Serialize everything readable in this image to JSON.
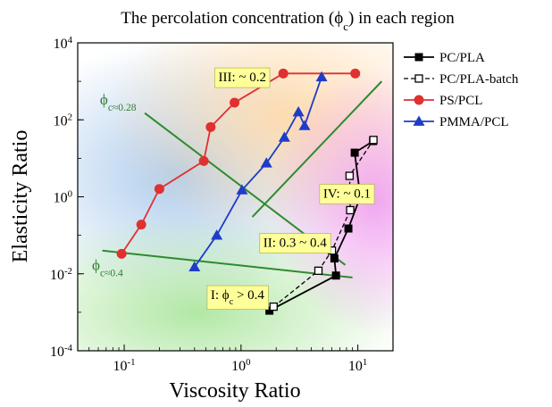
{
  "chart_data": {
    "type": "scatter",
    "title": "The percolation concentration (ϕ_c) in each region",
    "xlabel": "Viscosity Ratio",
    "ylabel": "Elasticity Ratio",
    "xscale": "log",
    "yscale": "log",
    "xlim": [
      0.04,
      20
    ],
    "ylim": [
      0.0001,
      10000
    ],
    "x_ticks": [
      {
        "value": 0.1,
        "label": "10^-1"
      },
      {
        "value": 1,
        "label": "10^0"
      },
      {
        "value": 10,
        "label": "10^1"
      }
    ],
    "y_ticks": [
      {
        "value": 0.0001,
        "label": "10^-4"
      },
      {
        "value": 0.01,
        "label": "10^-2"
      },
      {
        "value": 1,
        "label": "10^0"
      },
      {
        "value": 100,
        "label": "10^2"
      },
      {
        "value": 10000,
        "label": "10^4"
      }
    ],
    "legend_position": "right",
    "series": [
      {
        "name": "PC/PLA",
        "color": "#000000",
        "marker": "square-filled",
        "line": "solid",
        "points": [
          [
            1.75,
            0.0011
          ],
          [
            6.5,
            0.009
          ],
          [
            6.3,
            0.025
          ],
          [
            8.3,
            0.15
          ],
          [
            10.5,
            1.0
          ],
          [
            9.4,
            14
          ],
          [
            13.5,
            28
          ]
        ]
      },
      {
        "name": "PC/PLA-batch",
        "color": "#000000",
        "marker": "square-open",
        "line": "dashed",
        "points": [
          [
            1.9,
            0.0014
          ],
          [
            4.6,
            0.012
          ],
          [
            6.0,
            0.04
          ],
          [
            8.6,
            0.45
          ],
          [
            8.5,
            3.5
          ],
          [
            13.6,
            30
          ]
        ]
      },
      {
        "name": "PS/PCL",
        "color": "#e03030",
        "marker": "circle",
        "line": "solid",
        "points": [
          [
            0.095,
            0.033
          ],
          [
            0.14,
            0.19
          ],
          [
            0.2,
            1.6
          ],
          [
            0.48,
            8.5
          ],
          [
            0.55,
            65
          ],
          [
            0.88,
            280
          ],
          [
            2.3,
            1600
          ],
          [
            9.5,
            1600
          ]
        ]
      },
      {
        "name": "PMMA/PCL",
        "color": "#1f3cc7",
        "marker": "triangle",
        "line": "solid",
        "points": [
          [
            0.4,
            0.015
          ],
          [
            0.62,
            0.1
          ],
          [
            1.02,
            1.5
          ],
          [
            1.65,
            7.5
          ],
          [
            2.35,
            35
          ],
          [
            3.1,
            160
          ],
          [
            3.5,
            70
          ],
          [
            4.9,
            1300
          ]
        ]
      }
    ],
    "boundary_lines": [
      {
        "color": "#2e8b2e",
        "points": [
          [
            0.15,
            150
          ],
          [
            7.8,
            0.017
          ]
        ]
      },
      {
        "color": "#2e8b2e",
        "points": [
          [
            0.065,
            0.04
          ],
          [
            9.0,
            0.008
          ]
        ]
      },
      {
        "color": "#2e8b2e",
        "points": [
          [
            1.25,
            0.3
          ],
          [
            16.0,
            1000
          ]
        ]
      }
    ],
    "annotations": [
      {
        "text": "I: ϕ_c > 0.4",
        "x": 0.55,
        "y": 0.0022
      },
      {
        "text": "II: 0.3 ~ 0.4",
        "x": 1.55,
        "y": 0.05
      },
      {
        "text": "III: ~ 0.2",
        "x": 0.64,
        "y": 1000
      },
      {
        "text": "IV: ~ 0.1",
        "x": 5.05,
        "y": 0.95
      },
      {
        "text": "ϕ_c≈0.28",
        "x": 0.062,
        "y": 250
      },
      {
        "text": "ϕ_c≈0.4",
        "x": 0.053,
        "y": 0.0125
      }
    ]
  }
}
